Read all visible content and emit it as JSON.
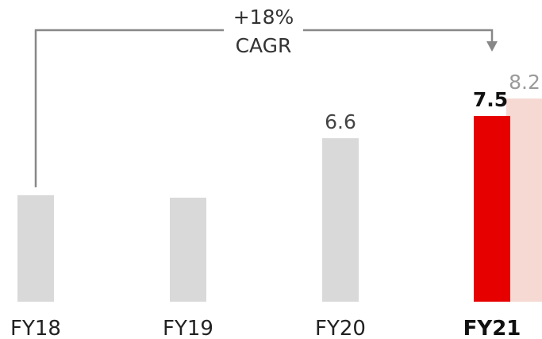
{
  "chart_data": {
    "type": "bar",
    "categories": [
      "FY18",
      "FY19",
      "FY20",
      "FY21"
    ],
    "series": [
      {
        "values": [
          4.3,
          4.2,
          6.6,
          7.5
        ]
      },
      {
        "values": [
          null,
          null,
          null,
          8.2
        ]
      }
    ],
    "data_labels": {
      "FY20": "6.6",
      "FY21": "7.5",
      "FY21_second": "8.2"
    },
    "highlight_category": "FY21",
    "annotation": {
      "line1": "+18%",
      "line2": "CAGR"
    },
    "colors": {
      "base_bar": "#d9d9d9",
      "highlight_bar": "#e60000",
      "secondary_bar": "#f5d9d2",
      "connector": "#888888"
    },
    "ylim": [
      0,
      8.2
    ],
    "grid": false,
    "legend": "none",
    "title": "",
    "xlabel": "",
    "ylabel": ""
  }
}
